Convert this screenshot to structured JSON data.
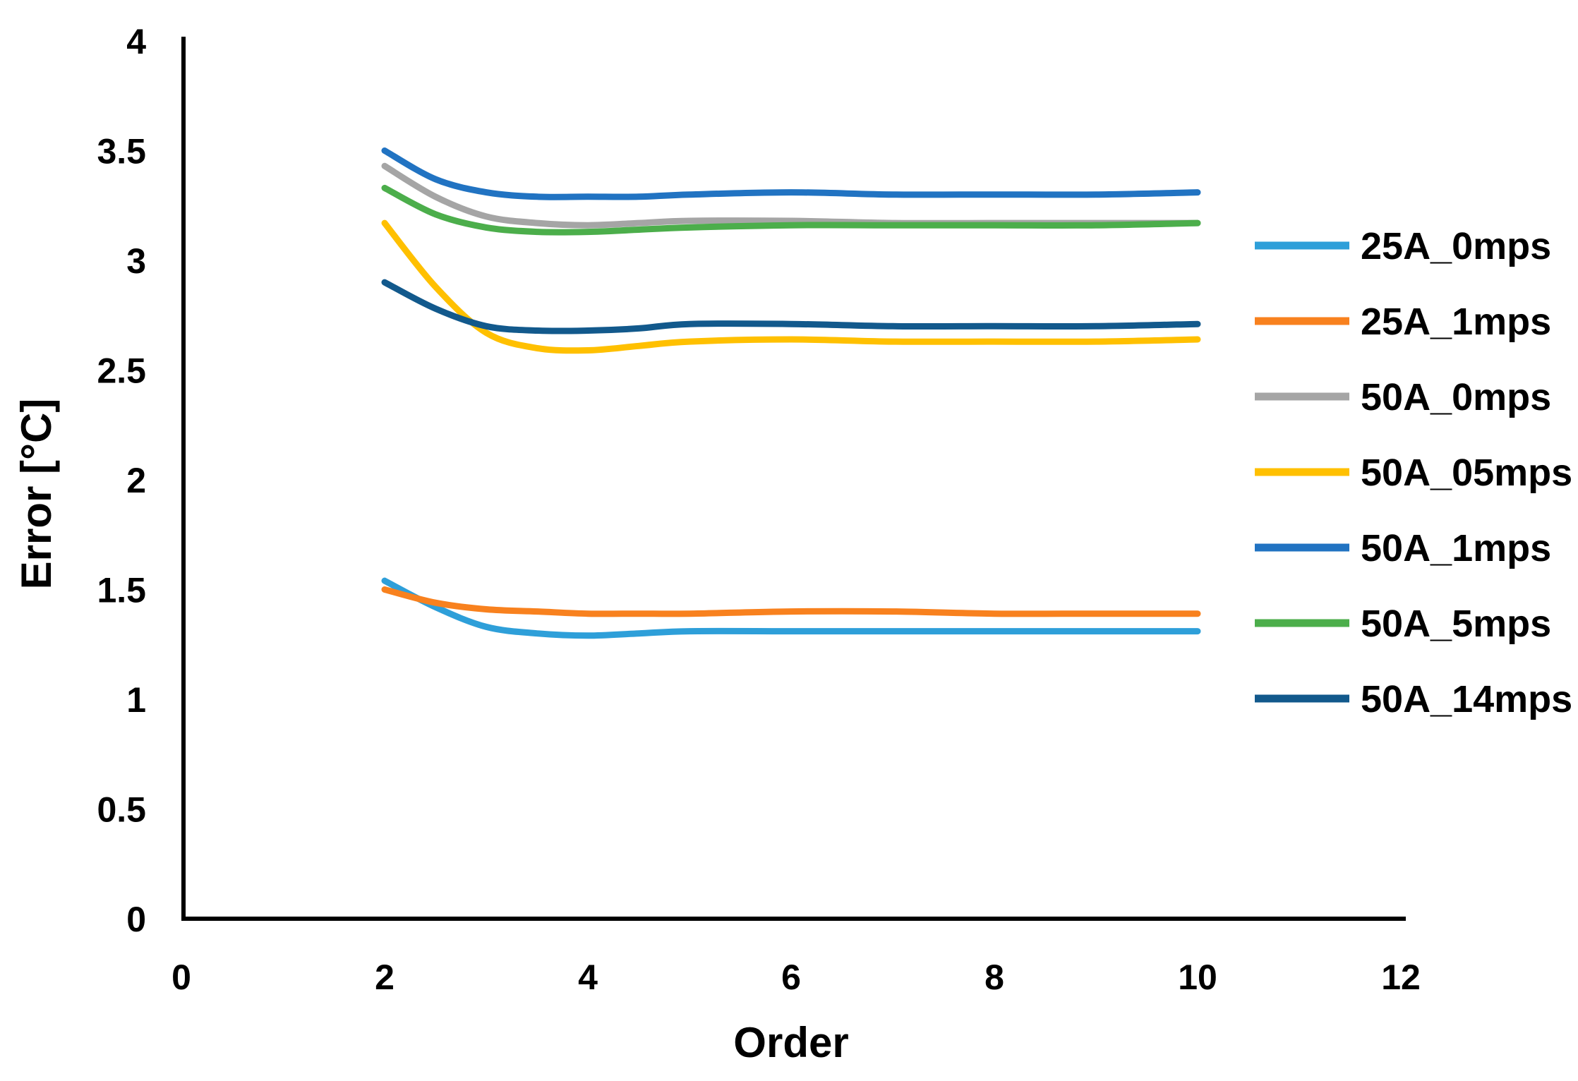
{
  "figure": {
    "background": "#ffffff",
    "axis_color": "#000000",
    "text_color": "#000000"
  },
  "chart_data": {
    "type": "line",
    "title": "",
    "xlabel": "Order",
    "ylabel": "Error [°C]",
    "xlim": [
      0,
      12
    ],
    "ylim": [
      0,
      4
    ],
    "xticks": [
      0,
      2,
      4,
      6,
      8,
      10,
      12
    ],
    "yticks": [
      0,
      0.5,
      1,
      1.5,
      2,
      2.5,
      3,
      3.5,
      4
    ],
    "grid": false,
    "legend_position": "right",
    "x": [
      2,
      2.5,
      3,
      3.5,
      4,
      4.5,
      5,
      6,
      7,
      8,
      9,
      10
    ],
    "series": [
      {
        "name": "25A_0mps",
        "color": "#2E9FD9",
        "values": [
          1.54,
          1.42,
          1.33,
          1.3,
          1.29,
          1.3,
          1.31,
          1.31,
          1.31,
          1.31,
          1.31,
          1.31
        ]
      },
      {
        "name": "25A_1mps",
        "color": "#F8811E",
        "values": [
          1.5,
          1.44,
          1.41,
          1.4,
          1.39,
          1.39,
          1.39,
          1.4,
          1.4,
          1.39,
          1.39,
          1.39
        ]
      },
      {
        "name": "50A_0mps",
        "color": "#A5A5A5",
        "values": [
          3.43,
          3.29,
          3.2,
          3.17,
          3.16,
          3.17,
          3.18,
          3.18,
          3.17,
          3.17,
          3.17,
          3.17
        ]
      },
      {
        "name": "50A_05mps",
        "color": "#FFC000",
        "values": [
          3.17,
          2.88,
          2.67,
          2.6,
          2.59,
          2.61,
          2.63,
          2.64,
          2.63,
          2.63,
          2.63,
          2.64
        ]
      },
      {
        "name": "50A_1mps",
        "color": "#2173C2",
        "values": [
          3.5,
          3.37,
          3.31,
          3.29,
          3.29,
          3.29,
          3.3,
          3.31,
          3.3,
          3.3,
          3.3,
          3.31
        ]
      },
      {
        "name": "50A_5mps",
        "color": "#4CAE4B",
        "values": [
          3.33,
          3.21,
          3.15,
          3.13,
          3.13,
          3.14,
          3.15,
          3.16,
          3.16,
          3.16,
          3.16,
          3.17
        ]
      },
      {
        "name": "50A_14mps",
        "color": "#12598C",
        "values": [
          2.9,
          2.78,
          2.7,
          2.68,
          2.68,
          2.69,
          2.71,
          2.71,
          2.7,
          2.7,
          2.7,
          2.71
        ]
      }
    ]
  }
}
